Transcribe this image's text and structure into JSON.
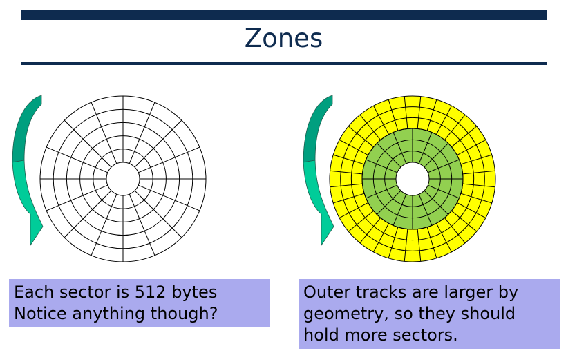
{
  "slide": {
    "title": "Zones"
  },
  "left_box": {
    "lines": [
      "Each sector is 512 bytes",
      "Notice anything though?"
    ]
  },
  "right_box": {
    "lines": [
      "Outer tracks are larger by",
      "geometry, so they should",
      "hold more sectors."
    ]
  },
  "disk_left": {
    "tracks": 5,
    "sectors_per_track": 16,
    "fill": "#ffffff"
  },
  "disk_right": {
    "inner_zone": {
      "tracks": 3,
      "sectors_per_track": 16,
      "fill": "#92d050"
    },
    "outer_zone": {
      "tracks": 3,
      "sectors_per_track": 32,
      "fill": "#ffff00"
    }
  },
  "colors": {
    "title": "#0e2b4f",
    "rules": "#0e2b4f",
    "textbox_bg": "#aaaaee",
    "arrow_top": "#009f7f",
    "arrow_bottom": "#00cc99"
  },
  "icons": {
    "rotation_arrow": "curved-rotation-arrow-icon"
  }
}
